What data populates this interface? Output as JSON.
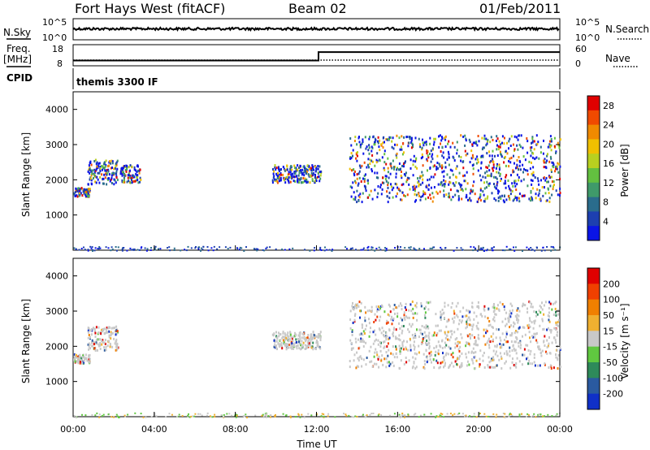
{
  "header": {
    "title": "Fort Hays West (fitACF)",
    "beam": "Beam 02",
    "date": "01/Feb/2011"
  },
  "top_panels": {
    "nsky_label": "N.Sky",
    "nsky_ticks": [
      "10^5",
      "10^0"
    ],
    "nsearch_label": "N.Search",
    "nsearch_ticks": [
      "10^5",
      "10^0"
    ],
    "freq_label": [
      "Freq.",
      "[MHz]"
    ],
    "freq_ticks": [
      "18",
      "8"
    ],
    "nave_label": "Nave",
    "nave_ticks": [
      "60",
      "0"
    ],
    "cpid_label": "CPID",
    "cpid_text": "themis 3300 IF",
    "freq_step_time_hours": 12.1,
    "freq_low_mhz": 10.5,
    "freq_high_mhz": 14.5
  },
  "chart_data": [
    {
      "type": "heatmap",
      "quantity": "power",
      "ylabel": "Slant Range [km]",
      "xlabel": "",
      "x_ticks": [
        "00:00",
        "04:00",
        "08:00",
        "12:00",
        "16:00",
        "20:00",
        "00:00"
      ],
      "xlim": [
        0,
        24
      ],
      "ylim": [
        0,
        4500
      ],
      "y_ticks": [
        1000,
        2000,
        3000,
        4000
      ],
      "colorbar": {
        "label": "Power [dB]",
        "ticks": [
          "4",
          "8",
          "12",
          "16",
          "20",
          "24",
          "28"
        ],
        "range": [
          0,
          30
        ],
        "colors": [
          "#0a14e6",
          "#1d3fb0",
          "#2a6c8c",
          "#3f9a6a",
          "#63c040",
          "#b8d020",
          "#f0c000",
          "#f08a00",
          "#f04a00",
          "#e00000"
        ]
      }
    },
    {
      "type": "heatmap",
      "quantity": "velocity",
      "ylabel": "Slant Range [km]",
      "xlabel": "Time UT",
      "x_ticks": [
        "00:00",
        "04:00",
        "08:00",
        "12:00",
        "16:00",
        "20:00",
        "00:00"
      ],
      "xlim": [
        0,
        24
      ],
      "ylim": [
        0,
        4500
      ],
      "y_ticks": [
        1000,
        2000,
        3000,
        4000
      ],
      "colorbar": {
        "label": "Velocity [m s⁻¹]",
        "ticks": [
          "200",
          "100",
          "50",
          "15",
          "-15",
          "-50",
          "-100",
          "-200"
        ],
        "colors": [
          "#1030c8",
          "#2a5aa0",
          "#2e8a5a",
          "#60c840",
          "#c8c8c8",
          "#f0b030",
          "#f08000",
          "#f04000",
          "#e00000"
        ]
      },
      "echo_regions": [
        {
          "t": [
            0.0,
            0.8
          ],
          "r": [
            1550,
            1800
          ],
          "v": "mixed"
        },
        {
          "t": [
            0.7,
            2.2
          ],
          "r": [
            1900,
            2600
          ],
          "v": "mixed"
        },
        {
          "t": [
            9.8,
            12.2
          ],
          "r": [
            1950,
            2450
          ],
          "v": "low"
        },
        {
          "t": [
            13.6,
            24.0
          ],
          "r": [
            1400,
            3300
          ],
          "v": "low"
        }
      ]
    }
  ],
  "echo_regions_power": [
    {
      "t": [
        0.0,
        0.8
      ],
      "r": [
        1550,
        1800
      ]
    },
    {
      "t": [
        0.7,
        2.2
      ],
      "r": [
        1900,
        2600
      ]
    },
    {
      "t": [
        2.3,
        3.3
      ],
      "r": [
        1950,
        2450
      ]
    },
    {
      "t": [
        9.8,
        12.2
      ],
      "r": [
        1950,
        2450
      ]
    },
    {
      "t": [
        13.6,
        24.0
      ],
      "r": [
        1400,
        3300
      ]
    }
  ]
}
